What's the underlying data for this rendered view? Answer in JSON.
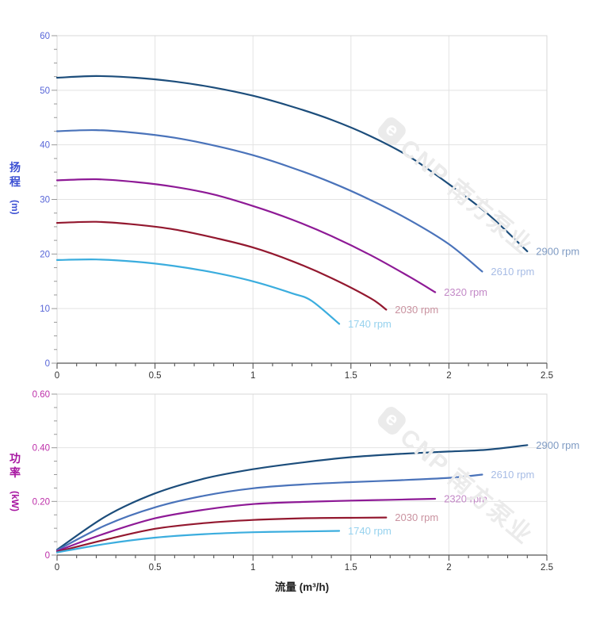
{
  "watermark": {
    "text": "CNP 南方泵业",
    "logo_glyph": "e",
    "color": "#ebebeb"
  },
  "chart_data": [
    {
      "type": "line",
      "title": "",
      "ylabel": "扬程",
      "yunit": "(m)",
      "xlabel": "",
      "ylim": [
        0,
        60
      ],
      "xlim": [
        0,
        2.5
      ],
      "yticks": [
        {
          "v": 0,
          "t": "0"
        },
        {
          "v": 10,
          "t": "10"
        },
        {
          "v": 20,
          "t": "20"
        },
        {
          "v": 30,
          "t": "30"
        },
        {
          "v": 40,
          "t": "40"
        },
        {
          "v": 50,
          "t": "50"
        },
        {
          "v": 60,
          "t": "60"
        }
      ],
      "xticks": [
        {
          "v": 0,
          "t": "0"
        },
        {
          "v": 0.5,
          "t": "0.5"
        },
        {
          "v": 1,
          "t": "1"
        },
        {
          "v": 1.5,
          "t": "1.5"
        },
        {
          "v": 2,
          "t": "2"
        },
        {
          "v": 2.5,
          "t": "2.5"
        }
      ],
      "y_minor_step": 2.5,
      "x_minor_step": 0.1,
      "grid": true,
      "legend_position": "line-end",
      "axis_title_color": "#3c50d3",
      "tick_label_color": "#5866d8",
      "series": [
        {
          "name": "2900 rpm",
          "color": "#1c4d7b",
          "label_color": "#7f9bc3",
          "points": [
            [
              0,
              52.3
            ],
            [
              0.2,
              52.6
            ],
            [
              0.4,
              52.3
            ],
            [
              0.6,
              51.6
            ],
            [
              0.8,
              50.5
            ],
            [
              1.0,
              49.0
            ],
            [
              1.2,
              47.0
            ],
            [
              1.4,
              44.6
            ],
            [
              1.6,
              41.6
            ],
            [
              1.8,
              37.8
            ],
            [
              2.0,
              32.8
            ],
            [
              2.2,
              27.3
            ],
            [
              2.4,
              20.5
            ]
          ]
        },
        {
          "name": "2610 rpm",
          "color": "#4a73ba",
          "label_color": "#a7bce5",
          "points": [
            [
              0,
              42.5
            ],
            [
              0.2,
              42.7
            ],
            [
              0.4,
              42.2
            ],
            [
              0.6,
              41.3
            ],
            [
              0.8,
              39.9
            ],
            [
              1.0,
              38.1
            ],
            [
              1.2,
              35.8
            ],
            [
              1.4,
              33.1
            ],
            [
              1.6,
              29.9
            ],
            [
              1.8,
              26.2
            ],
            [
              2.0,
              21.8
            ],
            [
              2.17,
              16.8
            ]
          ]
        },
        {
          "name": "2320 rpm",
          "color": "#8e1a96",
          "label_color": "#c389c7",
          "points": [
            [
              0,
              33.5
            ],
            [
              0.2,
              33.7
            ],
            [
              0.4,
              33.2
            ],
            [
              0.6,
              32.3
            ],
            [
              0.8,
              30.9
            ],
            [
              1.0,
              28.8
            ],
            [
              1.2,
              26.3
            ],
            [
              1.4,
              23.3
            ],
            [
              1.6,
              19.8
            ],
            [
              1.8,
              15.8
            ],
            [
              1.93,
              13.0
            ]
          ]
        },
        {
          "name": "2030 rpm",
          "color": "#93182f",
          "label_color": "#ca93a0",
          "points": [
            [
              0,
              25.7
            ],
            [
              0.2,
              25.9
            ],
            [
              0.4,
              25.4
            ],
            [
              0.6,
              24.5
            ],
            [
              0.8,
              23.0
            ],
            [
              1.0,
              21.2
            ],
            [
              1.2,
              18.7
            ],
            [
              1.4,
              15.6
            ],
            [
              1.6,
              11.9
            ],
            [
              1.68,
              9.8
            ]
          ]
        },
        {
          "name": "1740 rpm",
          "color": "#3badde",
          "label_color": "#97d2ee",
          "points": [
            [
              0,
              18.9
            ],
            [
              0.2,
              19.0
            ],
            [
              0.4,
              18.6
            ],
            [
              0.6,
              17.8
            ],
            [
              0.8,
              16.6
            ],
            [
              1.0,
              15.0
            ],
            [
              1.2,
              12.8
            ],
            [
              1.3,
              11.4
            ],
            [
              1.44,
              7.2
            ]
          ]
        }
      ]
    },
    {
      "type": "line",
      "title": "",
      "ylabel": "功率",
      "yunit": "(kW)",
      "xlabel": "流量 (m³/h)",
      "ylim": [
        0,
        0.6
      ],
      "xlim": [
        0,
        2.5
      ],
      "yticks": [
        {
          "v": 0,
          "t": "0"
        },
        {
          "v": 0.2,
          "t": "0.20"
        },
        {
          "v": 0.4,
          "t": "0.40"
        },
        {
          "v": 0.6,
          "t": "0.60"
        }
      ],
      "xticks": [
        {
          "v": 0,
          "t": "0"
        },
        {
          "v": 0.5,
          "t": "0.5"
        },
        {
          "v": 1,
          "t": "1"
        },
        {
          "v": 1.5,
          "t": "1.5"
        },
        {
          "v": 2,
          "t": "2"
        },
        {
          "v": 2.5,
          "t": "2.5"
        }
      ],
      "y_minor_step": 0.05,
      "x_minor_step": 0.1,
      "grid": true,
      "legend_position": "line-end",
      "axis_title_color": "#a716a1",
      "tick_label_color": "#bd2fa9",
      "series": [
        {
          "name": "2900 rpm",
          "color": "#1c4d7b",
          "label_color": "#7f9bc3",
          "points": [
            [
              0,
              0.02
            ],
            [
              0.25,
              0.145
            ],
            [
              0.5,
              0.23
            ],
            [
              0.75,
              0.285
            ],
            [
              1.0,
              0.32
            ],
            [
              1.25,
              0.345
            ],
            [
              1.5,
              0.365
            ],
            [
              1.75,
              0.377
            ],
            [
              2.0,
              0.386
            ],
            [
              2.2,
              0.393
            ],
            [
              2.4,
              0.41
            ]
          ]
        },
        {
          "name": "2610 rpm",
          "color": "#4a73ba",
          "label_color": "#a7bce5",
          "points": [
            [
              0,
              0.018
            ],
            [
              0.25,
              0.112
            ],
            [
              0.5,
              0.178
            ],
            [
              0.75,
              0.221
            ],
            [
              1.0,
              0.249
            ],
            [
              1.25,
              0.263
            ],
            [
              1.5,
              0.272
            ],
            [
              1.75,
              0.279
            ],
            [
              2.0,
              0.288
            ],
            [
              2.17,
              0.3
            ]
          ]
        },
        {
          "name": "2320 rpm",
          "color": "#8e1a96",
          "label_color": "#c389c7",
          "points": [
            [
              0,
              0.015
            ],
            [
              0.25,
              0.082
            ],
            [
              0.5,
              0.137
            ],
            [
              0.75,
              0.169
            ],
            [
              1.0,
              0.19
            ],
            [
              1.25,
              0.198
            ],
            [
              1.5,
              0.203
            ],
            [
              1.7,
              0.206
            ],
            [
              1.93,
              0.21
            ]
          ]
        },
        {
          "name": "2030 rpm",
          "color": "#93182f",
          "label_color": "#ca93a0",
          "points": [
            [
              0,
              0.012
            ],
            [
              0.25,
              0.058
            ],
            [
              0.5,
              0.098
            ],
            [
              0.75,
              0.119
            ],
            [
              1.0,
              0.131
            ],
            [
              1.25,
              0.137
            ],
            [
              1.5,
              0.139
            ],
            [
              1.68,
              0.14
            ]
          ]
        },
        {
          "name": "1740 rpm",
          "color": "#3badde",
          "label_color": "#97d2ee",
          "points": [
            [
              0,
              0.01
            ],
            [
              0.25,
              0.042
            ],
            [
              0.5,
              0.065
            ],
            [
              0.75,
              0.078
            ],
            [
              1.0,
              0.085
            ],
            [
              1.25,
              0.088
            ],
            [
              1.44,
              0.09
            ]
          ]
        }
      ]
    }
  ]
}
